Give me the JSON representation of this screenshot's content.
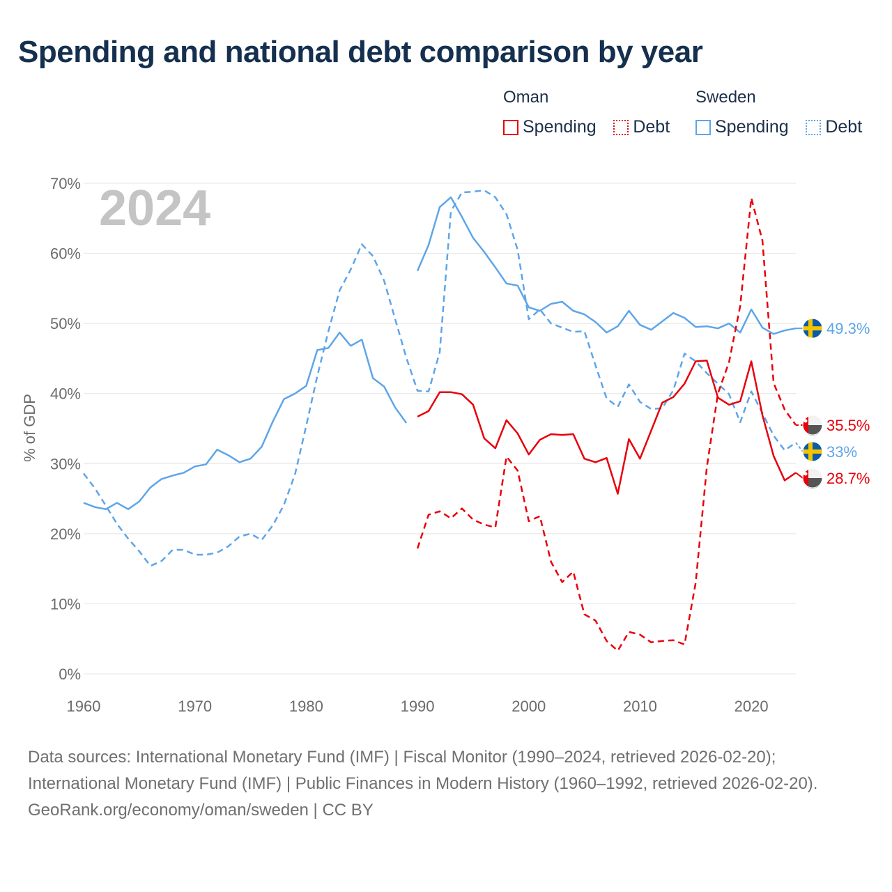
{
  "title": "Spending and national debt comparison by year",
  "legend": {
    "groups": [
      {
        "name": "Oman",
        "color": "#e8000b",
        "items": [
          {
            "label": "Spending",
            "style": "solid"
          },
          {
            "label": "Debt",
            "style": "dotted"
          }
        ]
      },
      {
        "name": "Sweden",
        "color": "#5ea5e8",
        "items": [
          {
            "label": "Spending",
            "style": "solid"
          },
          {
            "label": "Debt",
            "style": "dotted"
          }
        ]
      }
    ]
  },
  "colors": {
    "oman": "#e8000b",
    "sweden": "#5ea5e8",
    "grid": "#e4e4e4",
    "axis_text": "#6b6b6b",
    "year_label": "#c4c4c4"
  },
  "chart_data": {
    "type": "line",
    "title": "Spending and national debt comparison by year",
    "year_label": "2024",
    "ylabel": "% of GDP",
    "xlabel": "",
    "ylim": [
      0,
      70
    ],
    "xlim": [
      1960,
      2024
    ],
    "yticks": [
      "0%",
      "10%",
      "20%",
      "30%",
      "40%",
      "50%",
      "60%",
      "70%"
    ],
    "xticks": [
      "1960",
      "1970",
      "1980",
      "1990",
      "2000",
      "2010",
      "2020"
    ],
    "series": [
      {
        "name": "Sweden Spending",
        "country": "Sweden",
        "metric": "Spending",
        "dashed": false,
        "color": "#5ea5e8",
        "end_label": "49.3%",
        "segments": [
          {
            "start": 1960,
            "values": [
              24.4,
              23.8,
              23.5,
              24.4,
              23.5,
              24.6,
              26.6,
              27.8,
              28.3,
              28.7,
              29.6,
              29.9,
              32.0,
              31.2,
              30.2,
              30.7,
              32.4,
              36.0,
              39.2,
              40.0,
              41.1,
              46.2,
              46.5,
              48.7,
              46.8,
              47.7,
              42.2,
              41.0,
              38.0,
              35.8
            ]
          },
          {
            "start": 1990,
            "values": [
              57.5,
              61.2,
              66.6,
              68.0,
              65.2,
              62.2,
              60.2,
              58.0,
              55.7,
              55.4,
              52.3,
              51.8,
              52.8,
              53.1,
              51.8,
              51.3,
              50.2,
              48.7,
              49.6,
              51.8,
              49.8,
              49.1,
              50.3,
              51.5,
              50.8,
              49.5,
              49.6,
              49.3,
              50.0,
              48.7,
              52.0,
              49.4,
              48.5,
              49.0,
              49.3
            ]
          }
        ]
      },
      {
        "name": "Sweden Debt",
        "country": "Sweden",
        "metric": "Debt",
        "dashed": true,
        "color": "#5ea5e8",
        "end_label": "33%",
        "segments": [
          {
            "start": 1960,
            "values": [
              28.6,
              26.5,
              24.0,
              21.4,
              19.3,
              17.5,
              15.4,
              16.1,
              17.7,
              17.7,
              17.0,
              17.0,
              17.3,
              18.2,
              19.6,
              20.0,
              19.1,
              21.2,
              24.1,
              28.5,
              35.4,
              42.5,
              48.9,
              54.7,
              57.7,
              61.3,
              59.6,
              56.1,
              50.6,
              45.1,
              40.4,
              40.3,
              45.9,
              66.0,
              68.7,
              68.8,
              69.0,
              68.0,
              65.6,
              60.5,
              50.6,
              52.0,
              50.0,
              49.4,
              48.8,
              48.9,
              44.0,
              39.3,
              38.1,
              41.3,
              38.8,
              37.8,
              37.9,
              40.5,
              45.7,
              44.6,
              42.9,
              41.4,
              39.9,
              35.9,
              40.3,
              37.2,
              34.0,
              31.9,
              33.0
            ]
          }
        ]
      },
      {
        "name": "Oman Spending",
        "country": "Oman",
        "metric": "Spending",
        "dashed": false,
        "color": "#e8000b",
        "end_label": "28.7%",
        "segments": [
          {
            "start": 1990,
            "values": [
              36.7,
              37.5,
              40.2,
              40.2,
              39.9,
              38.4,
              33.6,
              32.2,
              36.2,
              34.3,
              31.3,
              33.4,
              34.2,
              34.1,
              34.2,
              30.7,
              30.2,
              30.8,
              25.7,
              33.5,
              30.7,
              34.7,
              38.7,
              39.5,
              41.4,
              44.6,
              44.7,
              39.4,
              38.4,
              38.9,
              44.6,
              36.9,
              31.1,
              27.6,
              28.7
            ]
          }
        ]
      },
      {
        "name": "Oman Debt",
        "country": "Oman",
        "metric": "Debt",
        "dashed": true,
        "color": "#e8000b",
        "end_label": "35.5%",
        "segments": [
          {
            "start": 1990,
            "values": [
              17.9,
              22.7,
              23.2,
              22.2,
              23.6,
              22.0,
              21.3,
              20.9,
              31.0,
              29.0,
              21.8,
              22.5,
              16.0,
              13.1,
              14.6,
              8.5,
              7.6,
              4.7,
              3.3,
              6.0,
              5.6,
              4.5,
              4.7,
              4.8,
              4.2,
              13.0,
              29.5,
              40.0,
              44.5,
              52.5,
              67.9,
              61.8,
              41.5,
              37.7,
              35.5
            ]
          }
        ]
      }
    ]
  },
  "footer": {
    "sources": "Data sources: International Monetary Fund (IMF) | Fiscal Monitor (1990–2024, retrieved 2026-02-20); International Monetary Fund (IMF) | Public Finances in Modern History (1960–1992, retrieved 2026-02-20).",
    "credit": "GeoRank.org/economy/oman/sweden | CC BY"
  }
}
